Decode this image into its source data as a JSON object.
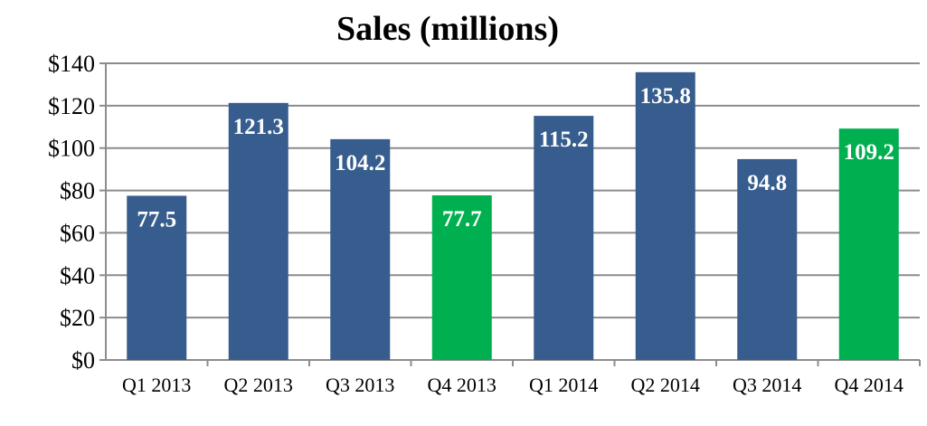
{
  "chart_data": {
    "type": "bar",
    "title": "Sales (millions)",
    "xlabel": "",
    "ylabel": "",
    "categories": [
      "Q1 2013",
      "Q2 2013",
      "Q3 2013",
      "Q4 2013",
      "Q1 2014",
      "Q2 2014",
      "Q3 2014",
      "Q4 2014"
    ],
    "values": [
      77.5,
      121.3,
      104.2,
      77.7,
      115.2,
      135.8,
      94.8,
      109.2
    ],
    "data_labels": [
      "77.5",
      "121.3",
      "104.2",
      "77.7",
      "115.2",
      "135.8",
      "94.8",
      "109.2"
    ],
    "bar_colors": [
      "#375d8e",
      "#375d8e",
      "#375d8e",
      "#00b050",
      "#375d8e",
      "#375d8e",
      "#375d8e",
      "#00b050"
    ],
    "ylim": [
      0,
      140
    ],
    "yticks": [
      0,
      20,
      40,
      60,
      80,
      100,
      120,
      140
    ],
    "ytick_labels": [
      "$0",
      "$20",
      "$40",
      "$60",
      "$80",
      "$100",
      "$120",
      "$140"
    ],
    "grid": true,
    "legend": "none"
  }
}
